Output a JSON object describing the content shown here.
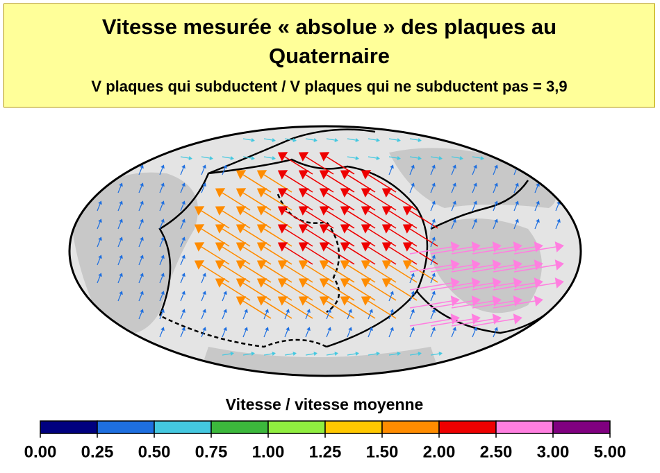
{
  "header": {
    "title": "Vitesse mesurée « absolue » des plaques au Quaternaire",
    "subtitle": "V plaques qui subductent / V plaques qui ne subductent pas = 3,9"
  },
  "colorbar": {
    "label": "Vitesse / vitesse moyenne",
    "ticks": [
      {
        "value": 0,
        "label": "0.00"
      },
      {
        "value": 0.25,
        "label": "0.25"
      },
      {
        "value": 0.5,
        "label": "0.50"
      },
      {
        "value": 0.75,
        "label": "0.75"
      },
      {
        "value": 1,
        "label": "1.00"
      },
      {
        "value": 1.25,
        "label": "1.25"
      },
      {
        "value": 1.5,
        "label": "1.50"
      },
      {
        "value": 2,
        "label": "2.00"
      },
      {
        "value": 2.5,
        "label": "2.50"
      },
      {
        "value": 3,
        "label": "3.00"
      },
      {
        "value": 5,
        "label": "5.00"
      }
    ],
    "colors": [
      "#00007f",
      "#1e6fe0",
      "#44c8e0",
      "#3cb83c",
      "#90ee40",
      "#ffc800",
      "#ff8c00",
      "#ee0000",
      "#ff7fe0",
      "#800080"
    ]
  }
}
